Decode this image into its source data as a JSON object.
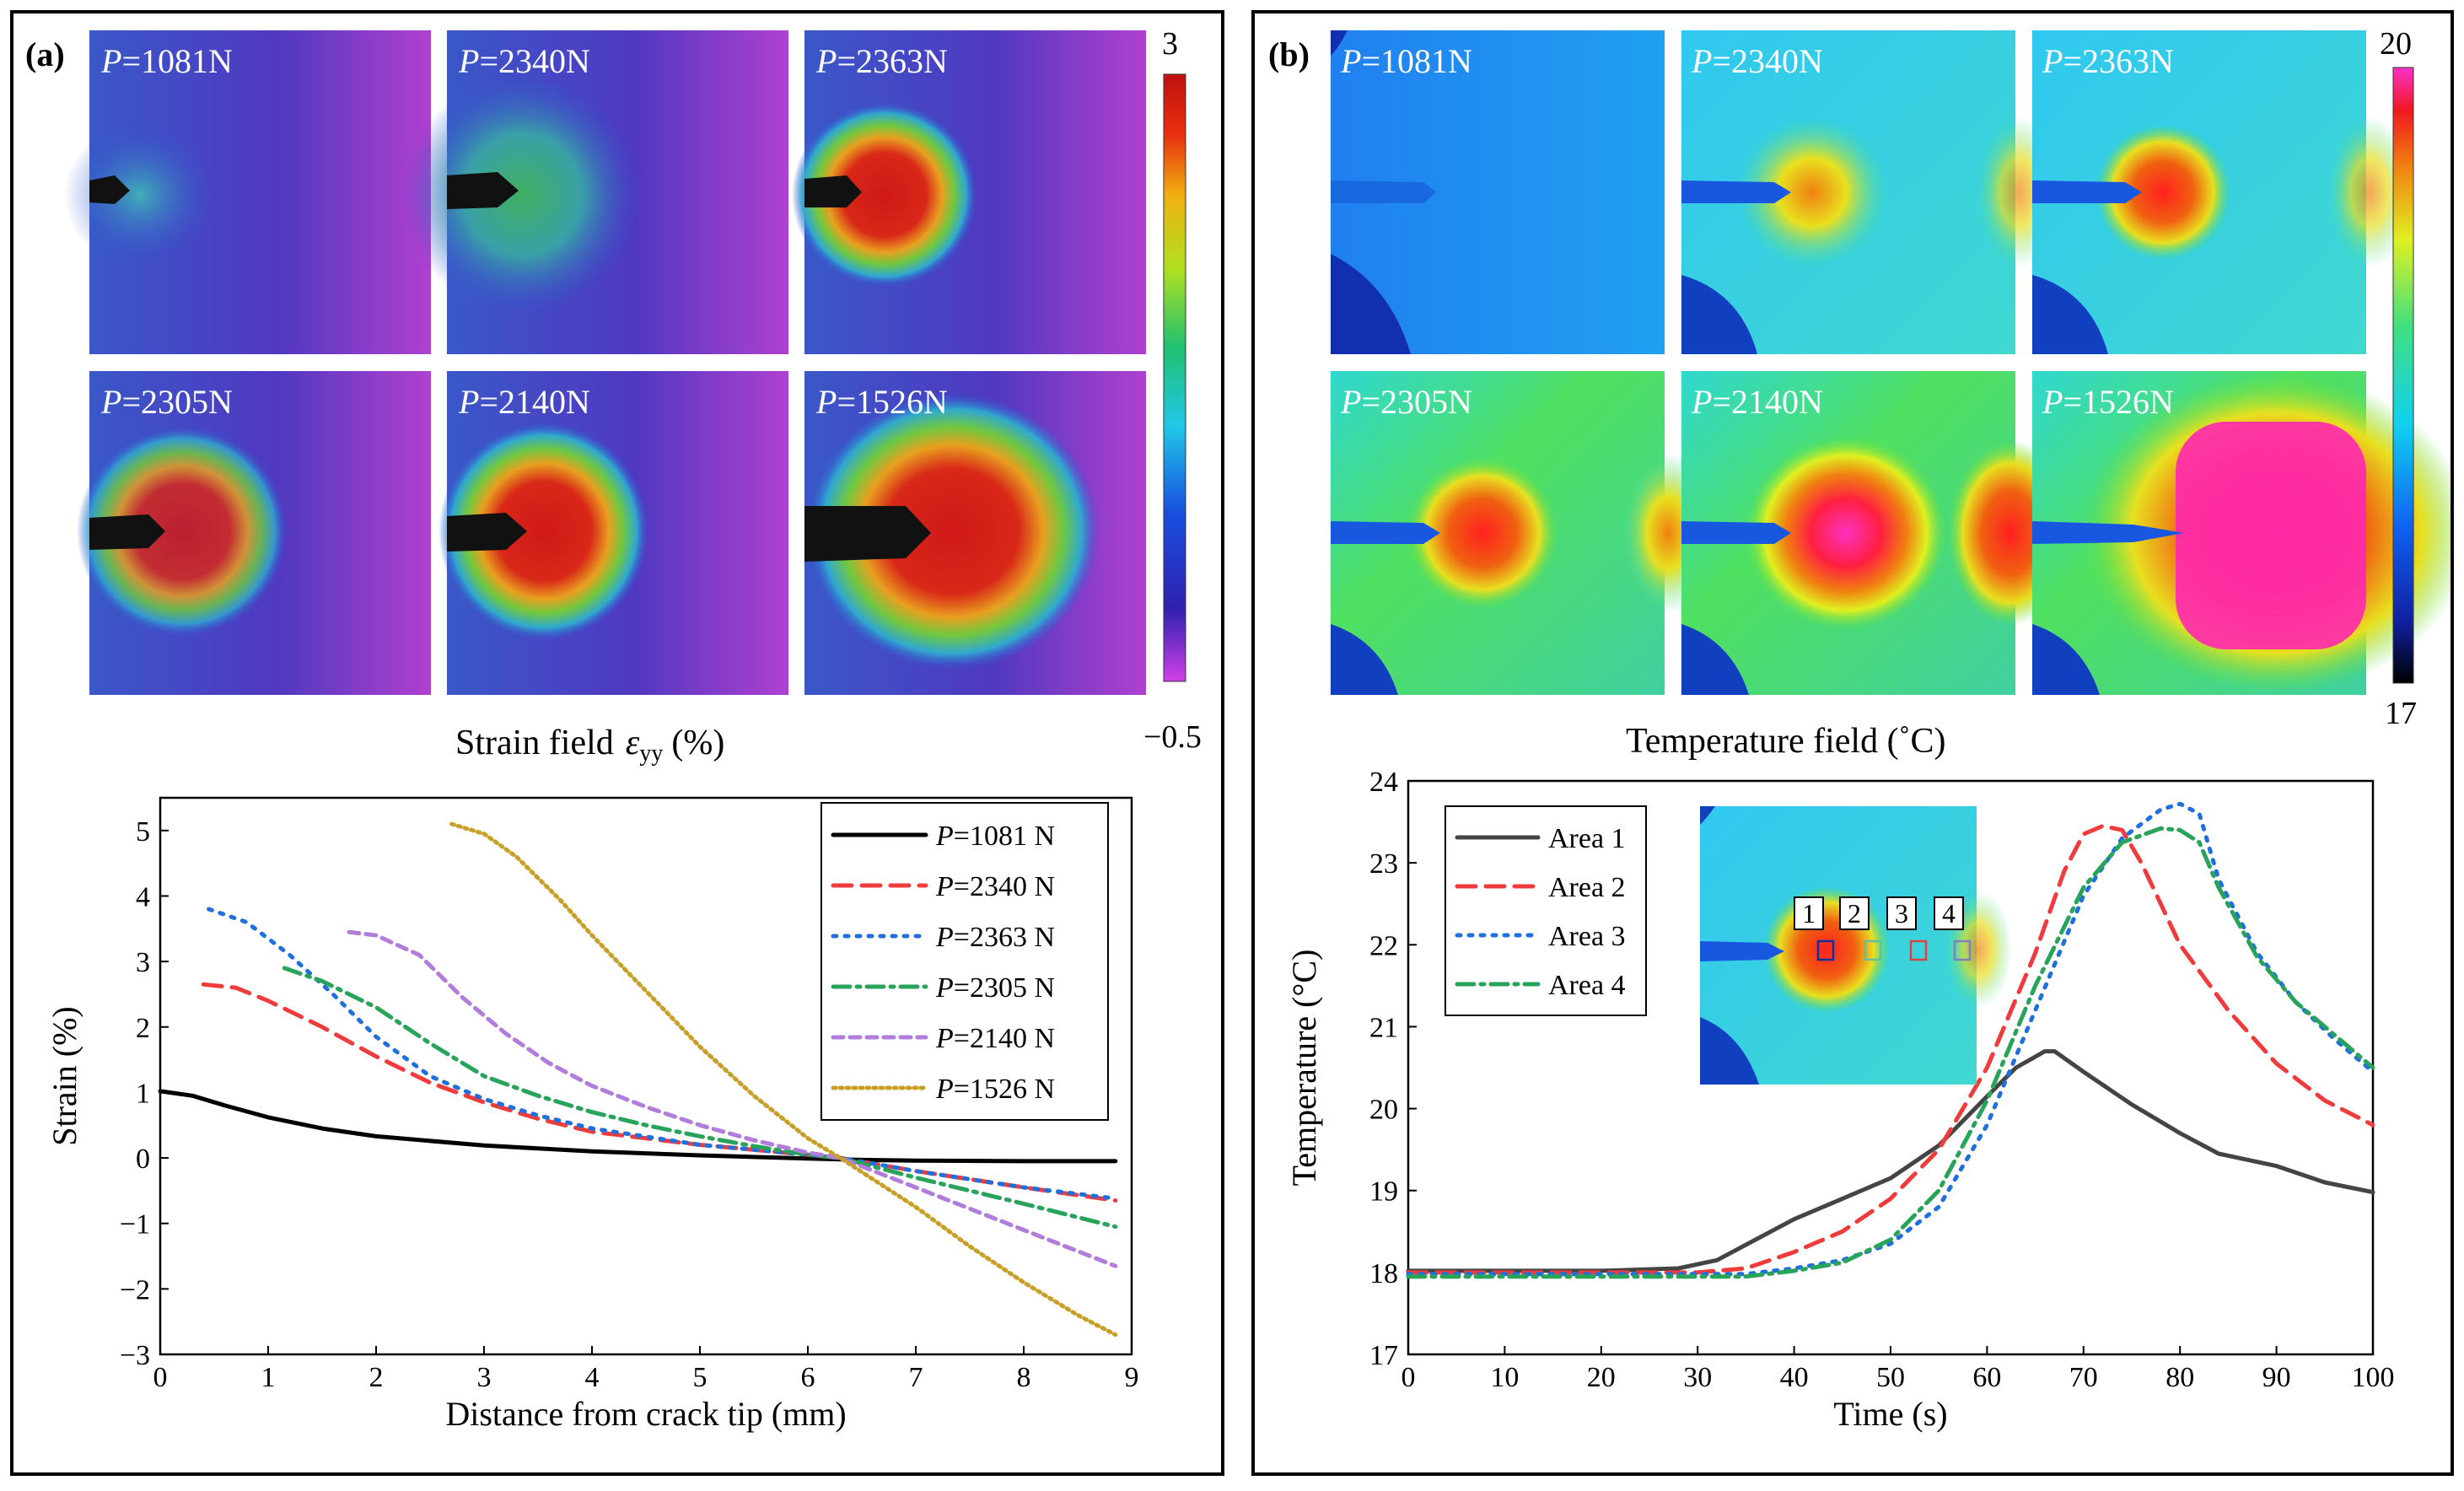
{
  "panel_a": {
    "label": "(a)",
    "maps": [
      {
        "label_var": "P",
        "label_rest": "=1081N",
        "core": 0.15
      },
      {
        "label_var": "P",
        "label_rest": "=2340N",
        "core": 0.4
      },
      {
        "label_var": "P",
        "label_rest": "=2363N",
        "core": 1.0
      },
      {
        "label_var": "P",
        "label_rest": "=2305N",
        "core": 0.75
      },
      {
        "label_var": "P",
        "label_rest": "=2140N",
        "core": 0.9
      },
      {
        "label_var": "P",
        "label_rest": "=1526N",
        "core": 1.0
      }
    ],
    "colorbar": {
      "max": "3",
      "min": "−0.5"
    },
    "field_label": {
      "prefix": "Strain field",
      "symbol": "ε",
      "subscript": "yy",
      "suffix": "(%)"
    }
  },
  "panel_b": {
    "label": "(b)",
    "maps": [
      {
        "label_var": "P",
        "label_rest": "=1081N",
        "core": 0.0
      },
      {
        "label_var": "P",
        "label_rest": "=2340N",
        "core": 0.45
      },
      {
        "label_var": "P",
        "label_rest": "=2363N",
        "core": 0.55
      },
      {
        "label_var": "P",
        "label_rest": "=2305N",
        "core": 0.75
      },
      {
        "label_var": "P",
        "label_rest": "=2140N",
        "core": 0.95
      },
      {
        "label_var": "P",
        "label_rest": "=1526N",
        "core": 1.0
      }
    ],
    "colorbar": {
      "max": "20",
      "min": "17"
    },
    "field_label": "Temperature field (˚C)"
  },
  "colors": {
    "p1081": "#000000",
    "p2340": "#ef3b3b",
    "p2363": "#1f6fdc",
    "p2305": "#27a35a",
    "p2140": "#b27cdc",
    "p1526": "#c8a028",
    "area1": "#444444",
    "area2": "#ef3b3b",
    "area3": "#1f6fdc",
    "area4": "#27a35a"
  },
  "chart_data": [
    {
      "type": "line",
      "title": "",
      "xlabel": "Distance from crack tip  (mm)",
      "ylabel": "Strain  (%)",
      "xlim": [
        0,
        9
      ],
      "ylim": [
        -3,
        5.5
      ],
      "xticks": [
        "0",
        "1",
        "2",
        "3",
        "4",
        "5",
        "6",
        "7",
        "8",
        "9"
      ],
      "yticks": [
        "−3",
        "−2",
        "−1",
        "0",
        "1",
        "2",
        "3",
        "4",
        "5"
      ],
      "legend_position": "top-right",
      "series": [
        {
          "name": "=1081 N",
          "var": "P",
          "style": "solid",
          "color_key": "p1081",
          "x": [
            0,
            0.3,
            0.6,
            1.0,
            1.5,
            2.0,
            3.0,
            4.0,
            5.0,
            6.0,
            6.5,
            7.0,
            8.0,
            8.85
          ],
          "y": [
            1.02,
            0.95,
            0.8,
            0.62,
            0.45,
            0.33,
            0.19,
            0.1,
            0.04,
            -0.01,
            -0.03,
            -0.04,
            -0.05,
            -0.05
          ]
        },
        {
          "name": "=2340 N",
          "var": "P",
          "style": "dash",
          "color_key": "p2340",
          "x": [
            0.4,
            0.7,
            1.0,
            1.5,
            2.0,
            2.5,
            3.0,
            3.5,
            4.0,
            5.0,
            6.0,
            6.3,
            7.0,
            8.0,
            8.85
          ],
          "y": [
            2.65,
            2.6,
            2.4,
            2.0,
            1.55,
            1.15,
            0.85,
            0.6,
            0.4,
            0.2,
            0.05,
            0.0,
            -0.2,
            -0.45,
            -0.65
          ]
        },
        {
          "name": "=2363 N",
          "var": "P",
          "style": "dot",
          "color_key": "p2363",
          "x": [
            0.45,
            0.8,
            1.2,
            1.6,
            2.0,
            2.5,
            3.0,
            3.5,
            4.0,
            5.0,
            6.0,
            6.3,
            7.0,
            8.0,
            8.85
          ],
          "y": [
            3.8,
            3.6,
            3.1,
            2.5,
            1.85,
            1.25,
            0.9,
            0.65,
            0.45,
            0.2,
            0.05,
            0.0,
            -0.2,
            -0.45,
            -0.62
          ]
        },
        {
          "name": "=2305 N",
          "var": "P",
          "style": "dashdot",
          "color_key": "p2305",
          "x": [
            1.15,
            1.5,
            2.0,
            2.5,
            3.0,
            3.5,
            4.0,
            4.5,
            5.0,
            5.5,
            6.0,
            6.3,
            7.0,
            8.0,
            8.85
          ],
          "y": [
            2.9,
            2.7,
            2.3,
            1.75,
            1.25,
            0.95,
            0.7,
            0.5,
            0.33,
            0.18,
            0.05,
            0.0,
            -0.3,
            -0.7,
            -1.05
          ]
        },
        {
          "name": "=2140 N",
          "var": "P",
          "style": "shortdash",
          "color_key": "p2140",
          "x": [
            1.75,
            2.0,
            2.4,
            2.8,
            3.2,
            3.6,
            4.0,
            4.5,
            5.0,
            5.5,
            6.0,
            6.3,
            7.0,
            8.0,
            8.85
          ],
          "y": [
            3.45,
            3.4,
            3.1,
            2.45,
            1.9,
            1.45,
            1.1,
            0.78,
            0.5,
            0.27,
            0.08,
            0.0,
            -0.45,
            -1.1,
            -1.65
          ]
        },
        {
          "name": "=1526 N",
          "var": "P",
          "style": "densedot",
          "color_key": "p1526",
          "x": [
            2.7,
            3.0,
            3.3,
            3.7,
            4.0,
            4.5,
            5.0,
            5.5,
            6.0,
            6.3,
            7.0,
            7.5,
            8.0,
            8.5,
            8.85
          ],
          "y": [
            5.1,
            4.95,
            4.6,
            3.95,
            3.4,
            2.55,
            1.7,
            0.95,
            0.3,
            0.0,
            -0.75,
            -1.35,
            -1.9,
            -2.4,
            -2.7
          ]
        }
      ]
    },
    {
      "type": "line",
      "title": "",
      "xlabel": "Time (s)",
      "ylabel": "Temperature  (°C)",
      "xlim": [
        0,
        100
      ],
      "ylim": [
        17,
        24
      ],
      "xticks": [
        "0",
        "10",
        "20",
        "30",
        "40",
        "50",
        "60",
        "70",
        "80",
        "90",
        "100"
      ],
      "yticks": [
        "17",
        "18",
        "19",
        "20",
        "21",
        "22",
        "23",
        "24"
      ],
      "legend_position": "top-left",
      "inset_labels": [
        "1",
        "2",
        "3",
        "4"
      ],
      "series": [
        {
          "name": "Area 1",
          "style": "solid",
          "color_key": "area1",
          "x": [
            0,
            20,
            28,
            32,
            36,
            40,
            45,
            50,
            55,
            60,
            63,
            66,
            67,
            70,
            75,
            80,
            84,
            90,
            95,
            100
          ],
          "y": [
            18.02,
            18.02,
            18.05,
            18.15,
            18.4,
            18.65,
            18.9,
            19.15,
            19.55,
            20.15,
            20.5,
            20.7,
            20.7,
            20.45,
            20.05,
            19.7,
            19.45,
            19.3,
            19.1,
            18.98
          ]
        },
        {
          "name": "Area 2",
          "style": "dash",
          "color_key": "area2",
          "x": [
            0,
            30,
            35,
            40,
            45,
            50,
            55,
            60,
            65,
            68,
            70,
            72,
            74,
            76,
            80,
            85,
            90,
            95,
            100
          ],
          "y": [
            18.0,
            18.0,
            18.05,
            18.25,
            18.5,
            18.9,
            19.5,
            20.5,
            21.9,
            22.9,
            23.35,
            23.45,
            23.4,
            23.0,
            22.0,
            21.2,
            20.55,
            20.1,
            19.8
          ]
        },
        {
          "name": "Area 3",
          "style": "dot",
          "color_key": "area3",
          "x": [
            0,
            35,
            40,
            45,
            50,
            55,
            60,
            65,
            70,
            74,
            78,
            80,
            82,
            84,
            88,
            92,
            96,
            100
          ],
          "y": [
            17.98,
            17.98,
            18.05,
            18.15,
            18.35,
            18.8,
            19.8,
            21.2,
            22.6,
            23.3,
            23.65,
            23.72,
            23.6,
            22.8,
            21.9,
            21.3,
            20.85,
            20.45
          ]
        },
        {
          "name": "Area 4",
          "style": "dashdot",
          "color_key": "area4",
          "x": [
            0,
            35,
            40,
            45,
            50,
            55,
            60,
            65,
            70,
            74,
            78,
            80,
            82,
            84,
            88,
            92,
            96,
            100
          ],
          "y": [
            17.95,
            17.95,
            18.02,
            18.12,
            18.4,
            19.0,
            20.1,
            21.5,
            22.7,
            23.25,
            23.42,
            23.4,
            23.25,
            22.7,
            21.85,
            21.3,
            20.9,
            20.5
          ]
        }
      ]
    }
  ]
}
